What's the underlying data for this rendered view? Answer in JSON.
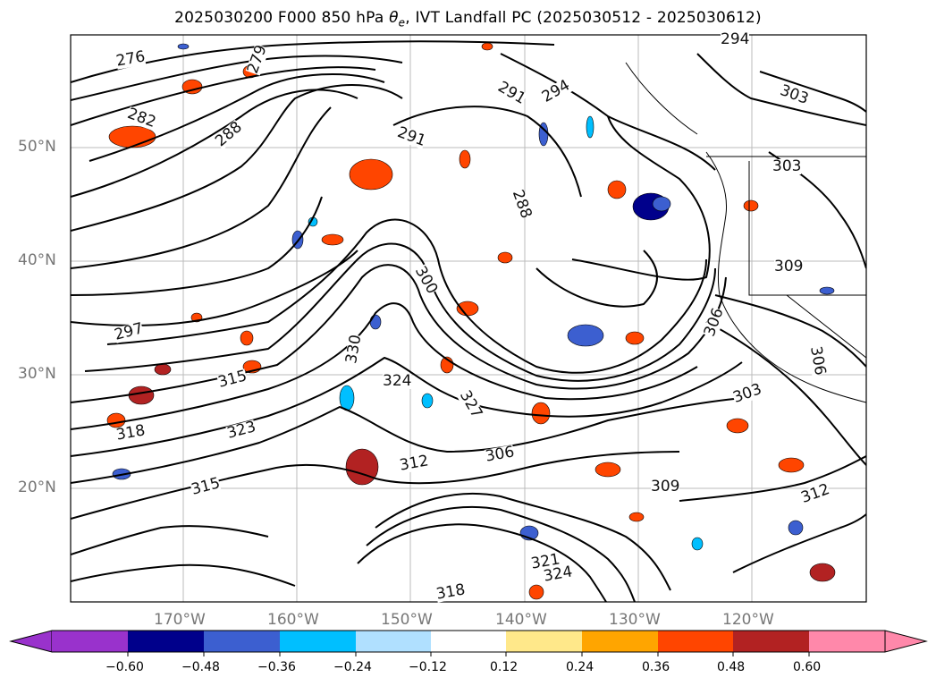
{
  "title": {
    "prefix": "2025030200 F000 850 hPa ",
    "theta": "θ",
    "theta_sub": "e",
    "suffix": ", IVT Landfall PC (2025030512 - 2025030612)"
  },
  "lat_labels": [
    "50°N",
    "40°N",
    "30°N",
    "20°N"
  ],
  "lon_labels": [
    "170°W",
    "160°W",
    "150°W",
    "140°W",
    "130°W",
    "120°W"
  ],
  "contour_labels": [
    "276",
    "279",
    "282",
    "288",
    "291",
    "291",
    "294",
    "294",
    "303",
    "288",
    "297",
    "300",
    "309",
    "306",
    "315",
    "318",
    "323",
    "330",
    "324",
    "327",
    "306",
    "312",
    "309",
    "303",
    "312",
    "315",
    "321",
    "324",
    "318",
    "306",
    "303"
  ],
  "colorbar": {
    "ticks": [
      "−0.60",
      "−0.48",
      "−0.36",
      "−0.24",
      "−0.12",
      "0.12",
      "0.24",
      "0.36",
      "0.48",
      "0.60"
    ],
    "colors": [
      "#9932cc",
      "#00008b",
      "#3c5fd0",
      "#00bfff",
      "#b0e0ff",
      "#ffffff",
      "#ffe88a",
      "#ffa500",
      "#ff4500",
      "#b22222",
      "#ff88aa"
    ]
  }
}
